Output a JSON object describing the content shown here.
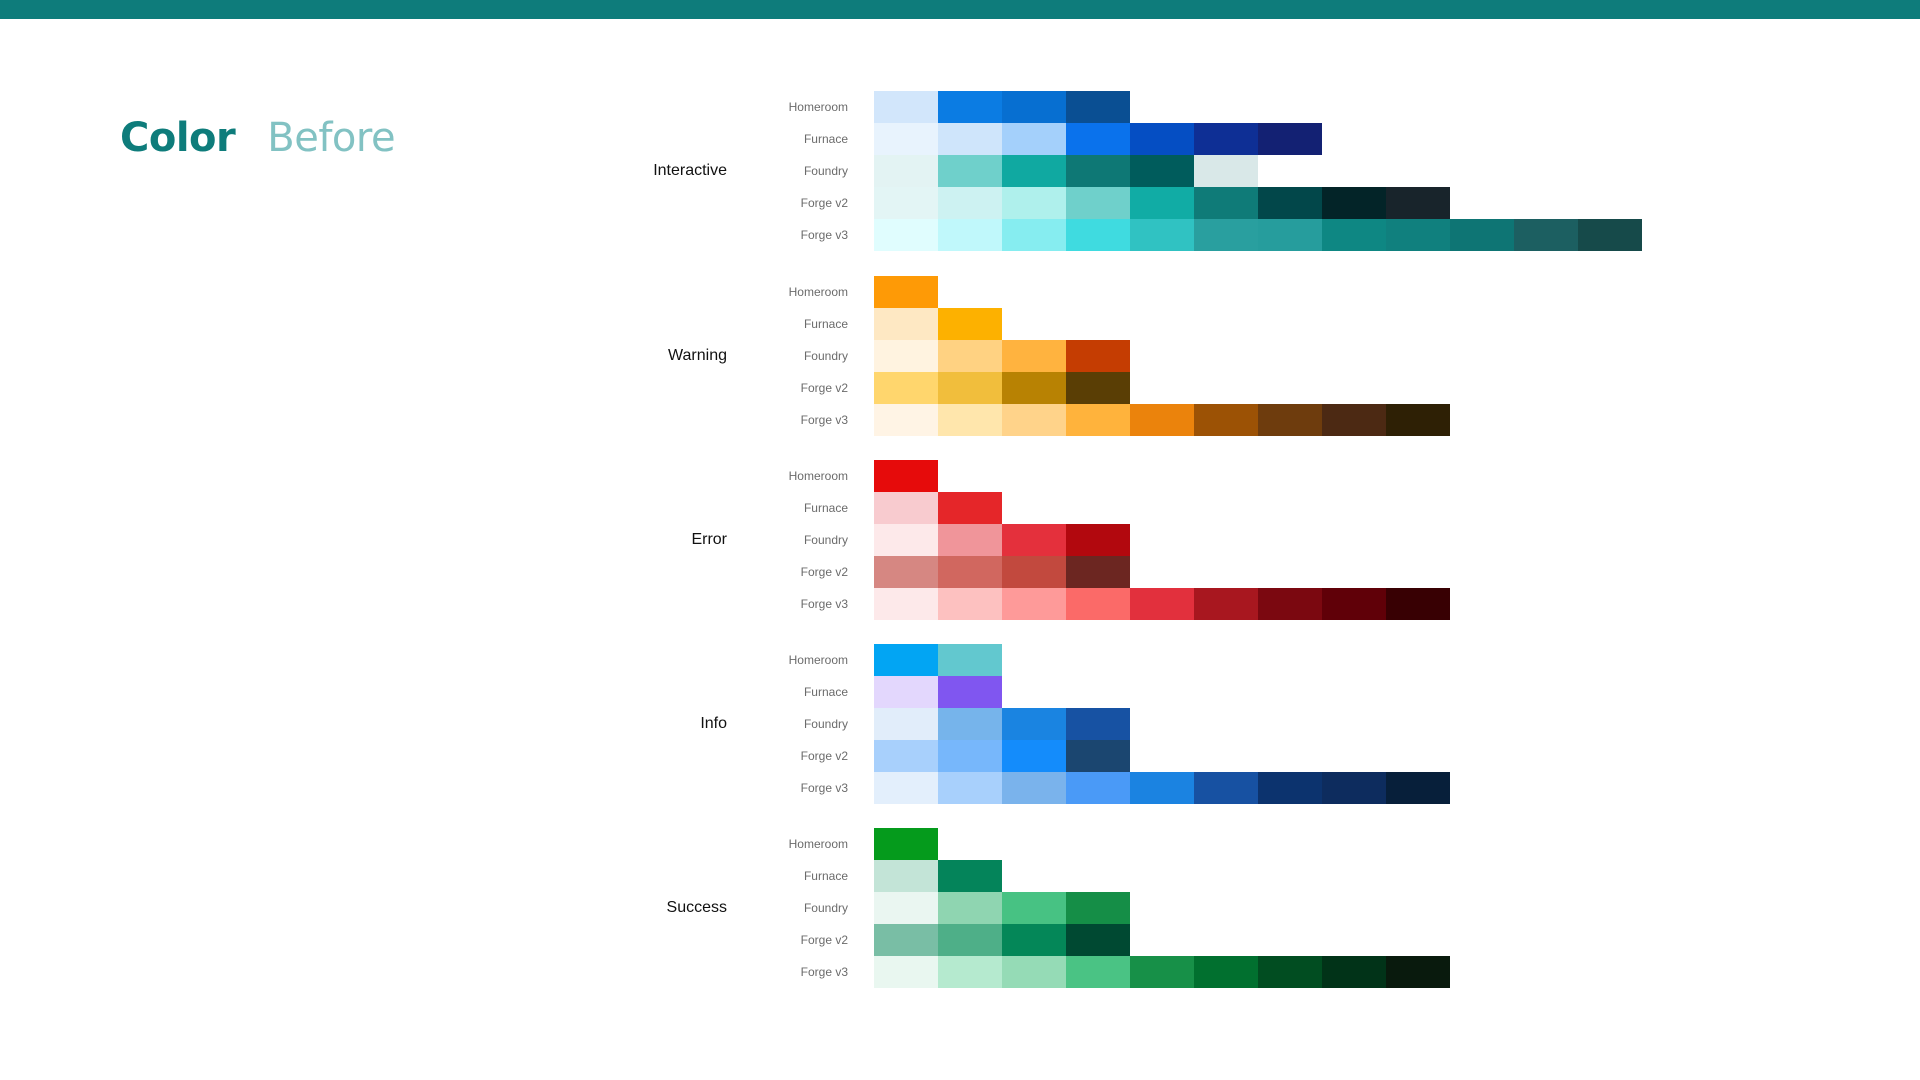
{
  "title": {
    "primary": "Color",
    "secondary": "Before"
  },
  "colors": {
    "topbar": "#0e7c7b"
  },
  "groups": [
    {
      "name": "Interactive",
      "rows": [
        {
          "label": "Homeroom",
          "swatches": [
            "#d2e6fb",
            "#0b7ce3",
            "#076fd1",
            "#0a4f93"
          ]
        },
        {
          "label": "Furnace",
          "swatches": [
            "#e8f3fd",
            "#cfe5fb",
            "#a4d0fb",
            "#0a72ec",
            "#054ec3",
            "#0e2f95",
            "#132173"
          ]
        },
        {
          "label": "Foundry",
          "swatches": [
            "#e3f3f3",
            "#6fd0cb",
            "#10a9a1",
            "#0e7875",
            "#005c5c",
            "#d9e8e8"
          ]
        },
        {
          "label": "Forge v2",
          "swatches": [
            "#e3f5f5",
            "#cdf2f2",
            "#aff0ec",
            "#6fd0cb",
            "#11aca5",
            "#0f7b78",
            "#02474a",
            "#032428",
            "#18242b"
          ]
        },
        {
          "label": "Forge v3",
          "swatches": [
            "#e0fdfe",
            "#c0f8fb",
            "#86edf0",
            "#3fdbe0",
            "#30c2c2",
            "#299f9f",
            "#269d9d",
            "#0e8783",
            "#10807e",
            "#0e7574",
            "#1c5f61",
            "#164a4a"
          ]
        }
      ]
    },
    {
      "name": "Warning",
      "rows": [
        {
          "label": "Homeroom",
          "swatches": [
            "#fe9a06"
          ]
        },
        {
          "label": "Furnace",
          "swatches": [
            "#fee8c3",
            "#fdb100"
          ]
        },
        {
          "label": "Foundry",
          "swatches": [
            "#fff3e0",
            "#ffd282",
            "#ffb33f",
            "#c53d02"
          ]
        },
        {
          "label": "Forge v2",
          "swatches": [
            "#ffd66d",
            "#f1be3c",
            "#b88203",
            "#5a3e05"
          ]
        },
        {
          "label": "Forge v3",
          "swatches": [
            "#fff4e5",
            "#ffe6ac",
            "#ffd38a",
            "#ffb33c",
            "#eb830c",
            "#9c5205",
            "#6e3c0d",
            "#4c2913",
            "#2e2005"
          ]
        }
      ]
    },
    {
      "name": "Error",
      "rows": [
        {
          "label": "Homeroom",
          "swatches": [
            "#e60b0b"
          ]
        },
        {
          "label": "Furnace",
          "swatches": [
            "#f8cbcf",
            "#e52629"
          ]
        },
        {
          "label": "Foundry",
          "swatches": [
            "#fde9ea",
            "#f0959a",
            "#e4303c",
            "#b2080e"
          ]
        },
        {
          "label": "Forge v2",
          "swatches": [
            "#d68782",
            "#d1675f",
            "#c2493e",
            "#6c2621"
          ]
        },
        {
          "label": "Forge v3",
          "swatches": [
            "#fde9ea",
            "#fdc1c0",
            "#fe9a99",
            "#fb6a68",
            "#e2303d",
            "#a8171f",
            "#7b0810",
            "#600008",
            "#380003"
          ]
        }
      ]
    },
    {
      "name": "Info",
      "rows": [
        {
          "label": "Homeroom",
          "swatches": [
            "#02a5f3",
            "#62c8cf"
          ]
        },
        {
          "label": "Furnace",
          "swatches": [
            "#e3d7fd",
            "#8056f0"
          ]
        },
        {
          "label": "Foundry",
          "swatches": [
            "#e1edfa",
            "#76b4eb",
            "#1a84e1",
            "#1752a3"
          ]
        },
        {
          "label": "Forge v2",
          "swatches": [
            "#a8d0fc",
            "#77b7fb",
            "#148cfb",
            "#1b4670"
          ]
        },
        {
          "label": "Forge v3",
          "swatches": [
            "#e3effc",
            "#a8d0fc",
            "#7ab3ec",
            "#4a9af7",
            "#1b83e1",
            "#1751a2",
            "#0c336e",
            "#0d2c5e",
            "#071f3a"
          ]
        }
      ]
    },
    {
      "name": "Success",
      "rows": [
        {
          "label": "Homeroom",
          "swatches": [
            "#059b1c"
          ]
        },
        {
          "label": "Furnace",
          "swatches": [
            "#c3e4d7",
            "#04845a"
          ]
        },
        {
          "label": "Foundry",
          "swatches": [
            "#eaf6f1",
            "#8fd5b1",
            "#47c283",
            "#158e47"
          ]
        },
        {
          "label": "Forge v2",
          "swatches": [
            "#79bea5",
            "#4eaf88",
            "#048758",
            "#004932"
          ]
        },
        {
          "label": "Forge v3",
          "swatches": [
            "#e9f7f0",
            "#b5eacf",
            "#95dbb6",
            "#4ac384",
            "#179048",
            "#01702f",
            "#014d21",
            "#013318",
            "#091a0d"
          ]
        }
      ]
    }
  ]
}
